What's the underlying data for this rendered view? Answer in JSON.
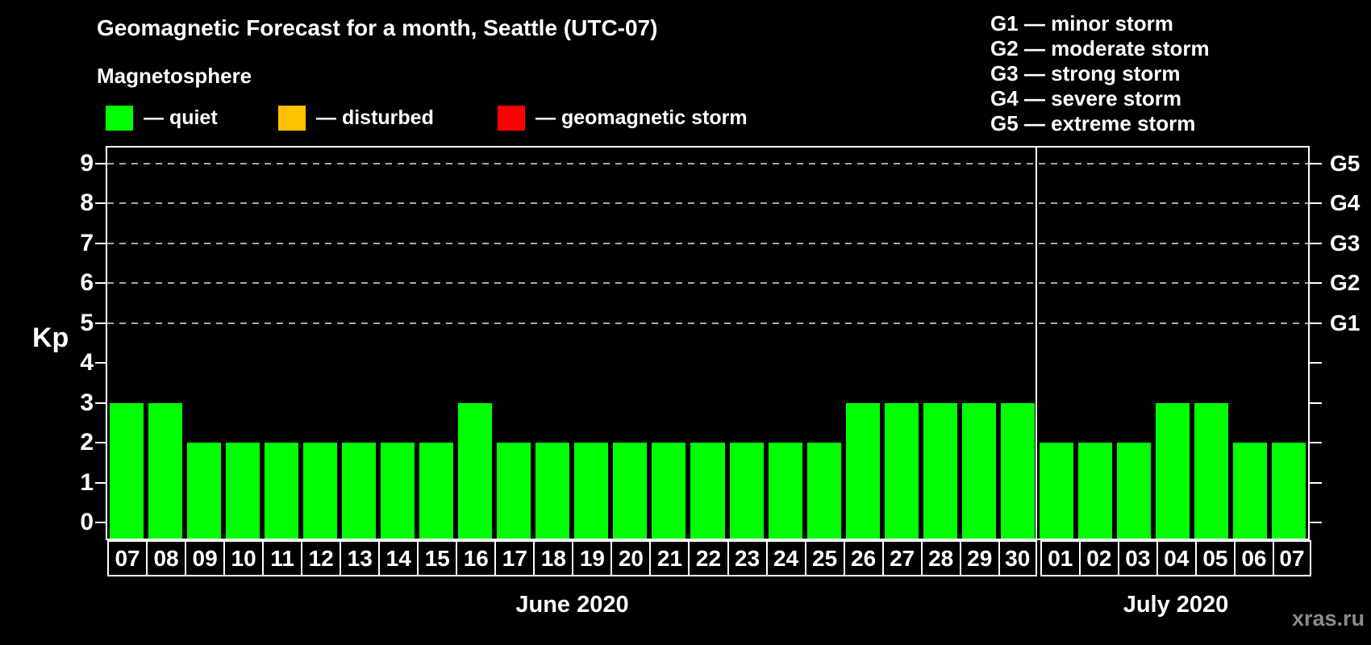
{
  "colors": {
    "background": "#000000",
    "text": "#ffffff",
    "quiet": "#00ff00",
    "disturbed": "#ffc000",
    "storm": "#ff0000",
    "grid": "#a8a8a8",
    "axis": "#ffffff",
    "watermark": "#8a8a8a"
  },
  "header": {
    "title": "Geomagnetic Forecast for a month, Seattle (UTC-07)",
    "subtitle": "Magnetosphere"
  },
  "legend": {
    "items": [
      {
        "key": "quiet",
        "label": "— quiet"
      },
      {
        "key": "disturbed",
        "label": "— disturbed"
      },
      {
        "key": "storm",
        "label": "— geomagnetic storm"
      }
    ]
  },
  "g_legend": [
    "G1 — minor storm",
    "G2 — moderate storm",
    "G3 — strong storm",
    "G4 — severe storm",
    "G5 — extreme storm"
  ],
  "chart_data": {
    "type": "bar",
    "title": "Geomagnetic Forecast for a month, Seattle (UTC-07)",
    "ylabel": "Kp",
    "y_ticks": [
      0,
      1,
      2,
      3,
      4,
      5,
      6,
      7,
      8,
      9
    ],
    "y_range": [
      -0.4,
      9.4
    ],
    "grid": "dashed horizontal lines at Kp 5-9 only",
    "gridlines_at_kp": [
      5,
      6,
      7,
      8,
      9
    ],
    "right_axis": [
      {
        "kp": 5,
        "label": "G1"
      },
      {
        "kp": 6,
        "label": "G2"
      },
      {
        "kp": 7,
        "label": "G3"
      },
      {
        "kp": 8,
        "label": "G4"
      },
      {
        "kp": 9,
        "label": "G5"
      }
    ],
    "months": [
      {
        "label": "June 2020",
        "days": [
          "07",
          "08",
          "09",
          "10",
          "11",
          "12",
          "13",
          "14",
          "15",
          "16",
          "17",
          "18",
          "19",
          "20",
          "21",
          "22",
          "23",
          "24",
          "25",
          "26",
          "27",
          "28",
          "29",
          "30"
        ],
        "kp_values": [
          3,
          3,
          2,
          2,
          2,
          2,
          2,
          2,
          2,
          3,
          2,
          2,
          2,
          2,
          2,
          2,
          2,
          2,
          2,
          3,
          3,
          3,
          3,
          3
        ]
      },
      {
        "label": "July 2020",
        "days": [
          "01",
          "02",
          "03",
          "04",
          "05",
          "06",
          "07"
        ],
        "kp_values": [
          2,
          2,
          2,
          3,
          3,
          2,
          2
        ]
      }
    ]
  },
  "watermark": "xras.ru"
}
